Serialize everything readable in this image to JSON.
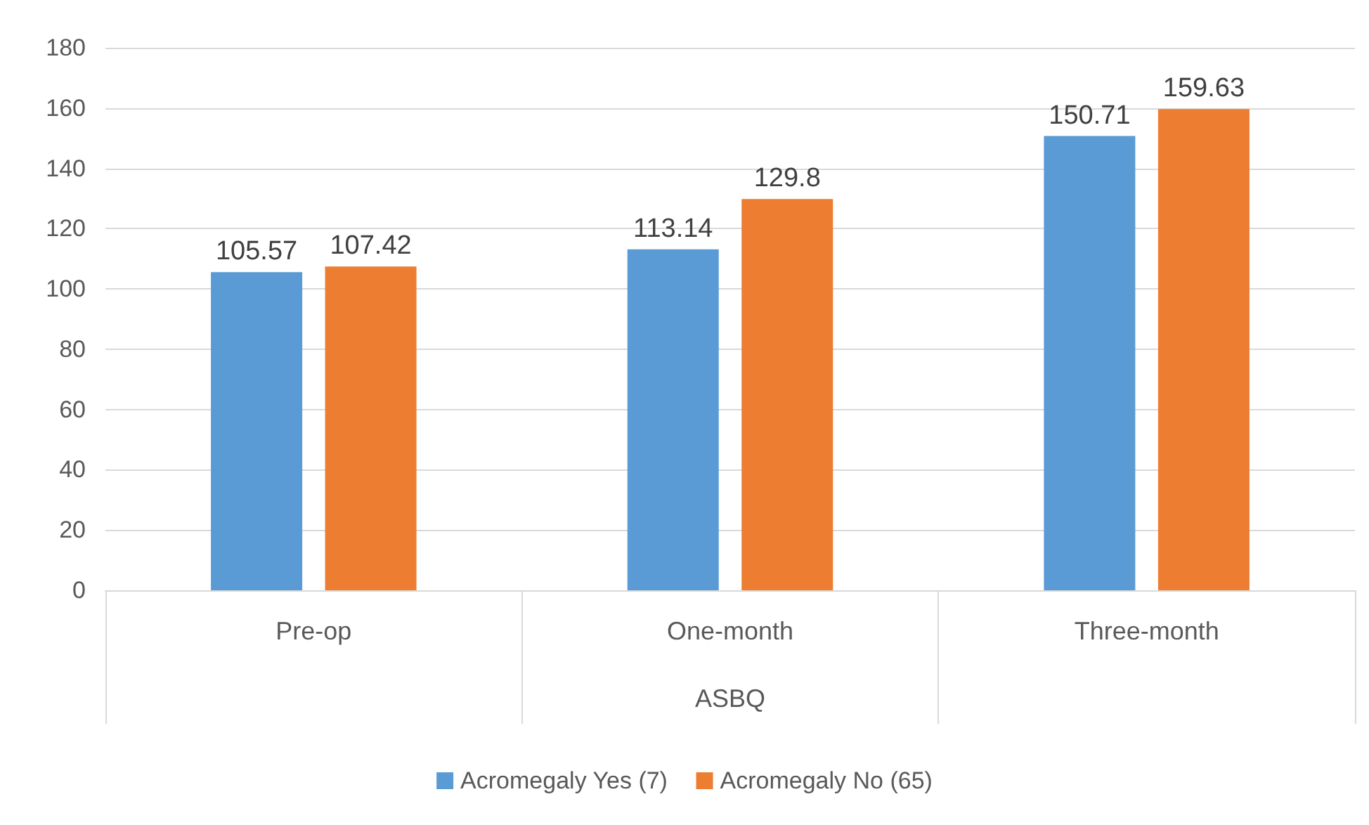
{
  "chart_data": {
    "type": "bar",
    "xlabel": "ASBQ",
    "categories": [
      "Pre-op",
      "One-month",
      "Three-month"
    ],
    "series": [
      {
        "name": "Acromegaly Yes (7)",
        "color": "#5b9bd5",
        "values": [
          105.57,
          113.14,
          150.71
        ]
      },
      {
        "name": "Acromegaly No (65)",
        "color": "#ed7d31",
        "values": [
          107.42,
          129.8,
          159.63
        ]
      }
    ],
    "ylim": [
      0,
      180
    ],
    "yticks": [
      0,
      20,
      40,
      60,
      80,
      100,
      120,
      140,
      160,
      180
    ],
    "grid": "y",
    "legend": "bottom",
    "data_labels": true
  }
}
